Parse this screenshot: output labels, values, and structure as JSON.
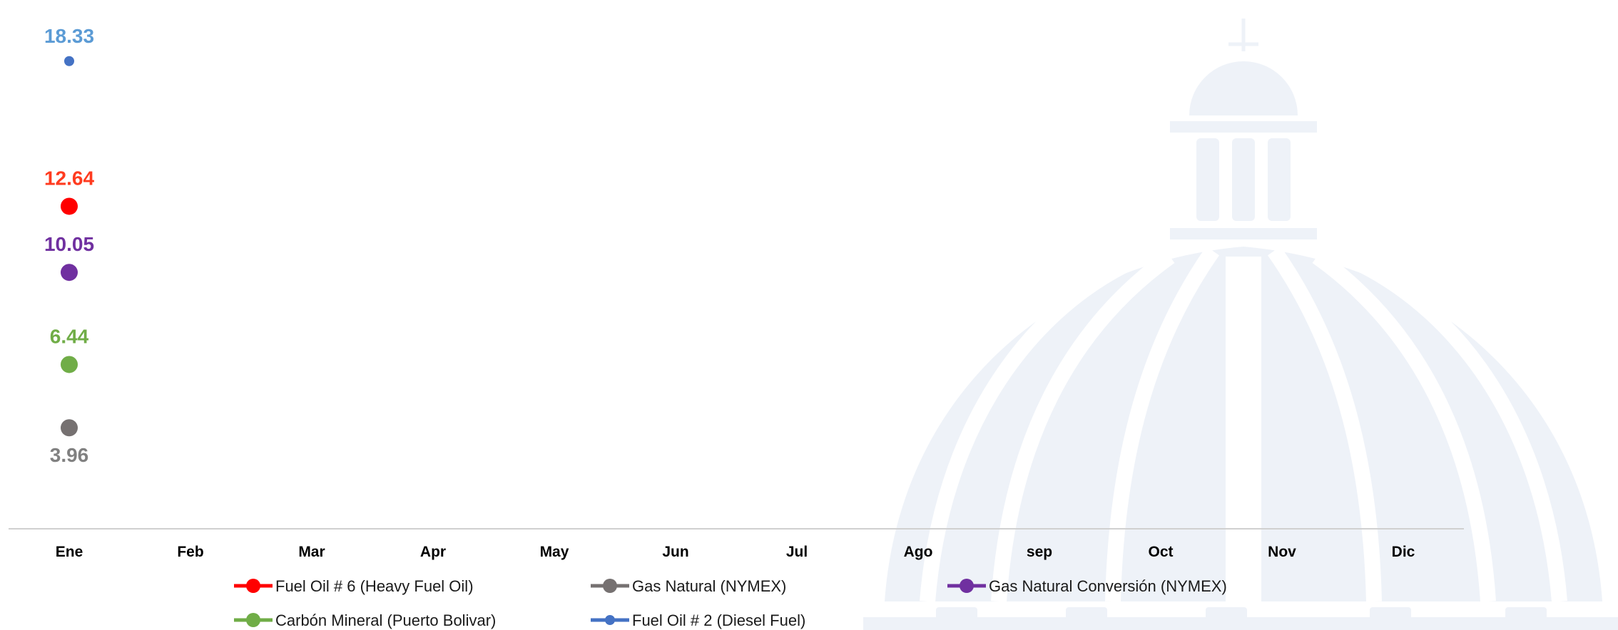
{
  "chart_data": {
    "type": "line",
    "categories": [
      "Ene",
      "Feb",
      "Mar",
      "Apr",
      "May",
      "Jun",
      "Jul",
      "Ago",
      "sep",
      "Oct",
      "Nov",
      "Dic"
    ],
    "ylim": [
      0,
      20
    ],
    "grid": false,
    "legend_position": "bottom",
    "series": [
      {
        "name": "Fuel Oil # 6 (Heavy Fuel Oil)",
        "color": "#ff0000",
        "label_color": "#ff3b1f",
        "marker_size": "large",
        "label_position": "above",
        "values": [
          12.64,
          null,
          null,
          null,
          null,
          null,
          null,
          null,
          null,
          null,
          null,
          null
        ],
        "labels": [
          "12.64"
        ]
      },
      {
        "name": "Gas Natural (NYMEX)",
        "color": "#767171",
        "label_color": "#808080",
        "marker_size": "large",
        "label_position": "below",
        "values": [
          3.96,
          null,
          null,
          null,
          null,
          null,
          null,
          null,
          null,
          null,
          null,
          null
        ],
        "labels": [
          "3.96"
        ]
      },
      {
        "name": "Gas Natural Conversión (NYMEX)",
        "color": "#7030a0",
        "label_color": "#7030a0",
        "marker_size": "large",
        "label_position": "above",
        "values": [
          10.05,
          null,
          null,
          null,
          null,
          null,
          null,
          null,
          null,
          null,
          null,
          null
        ],
        "labels": [
          "10.05"
        ]
      },
      {
        "name": "Carbón Mineral (Puerto Bolivar)",
        "color": "#70ad47",
        "label_color": "#70ad47",
        "marker_size": "large",
        "label_position": "above",
        "values": [
          6.44,
          null,
          null,
          null,
          null,
          null,
          null,
          null,
          null,
          null,
          null,
          null
        ],
        "labels": [
          "6.44"
        ]
      },
      {
        "name": "Fuel Oil # 2 (Diesel Fuel)",
        "color": "#4472c4",
        "label_color": "#5b9bd5",
        "marker_size": "small",
        "label_position": "above",
        "values": [
          18.33,
          null,
          null,
          null,
          null,
          null,
          null,
          null,
          null,
          null,
          null,
          null
        ],
        "labels": [
          "18.33"
        ]
      }
    ]
  },
  "watermark": {
    "icon": "dome-icon",
    "color": "#eef2f8"
  }
}
